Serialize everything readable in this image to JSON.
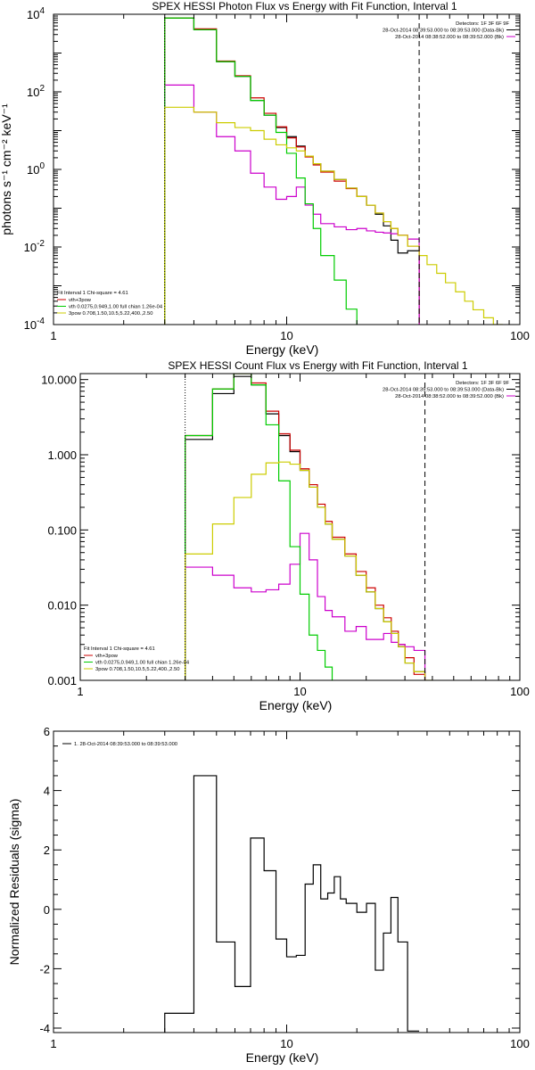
{
  "chart_data": [
    {
      "type": "line",
      "title": "SPEX HESSI Photon Flux vs Energy with Fit Function, Interval 1",
      "xlabel": "Energy (keV)",
      "ylabel": "photons s⁻¹ cm⁻² keV⁻¹",
      "xscale": "log",
      "yscale": "log",
      "xlim": [
        1,
        100
      ],
      "ylim": [
        0.0001,
        10000
      ],
      "xticks": [
        {
          "value": 1,
          "label": "1"
        },
        {
          "value": 10,
          "label": "10"
        },
        {
          "value": 100,
          "label": "100"
        }
      ],
      "yticks": [
        {
          "value": 0.0001,
          "label": "10",
          "sup": "-4"
        },
        {
          "value": 0.01,
          "label": "10",
          "sup": "-2"
        },
        {
          "value": 1,
          "label": "10",
          "sup": "0"
        },
        {
          "value": 100,
          "label": "10",
          "sup": "2"
        },
        {
          "value": 10000,
          "label": "10",
          "sup": "4"
        }
      ],
      "ytick_style": "power",
      "legend_top_right": [
        "Detectors: 1F 3F 6F 9F",
        "28-Oct-2014 08:39:53.000 to 08:39:53.000 (Data-Bk)",
        "28-Oct-2014 08:38:52.000 to 08:39:52.000 (Bk)"
      ],
      "legend_top_colors": [
        "#000000",
        "#cc00cc"
      ],
      "fit_text": "Fit Interval  1    Chi-square = 4.61",
      "legend_bottom_left": [
        "vth+3pow",
        "vth 0.0275,0.949,1.00  full chian 1.26e-04",
        "3pow 0.708,1.50,10.5,5.22,400.,2.50"
      ],
      "legend_bottom_colors": [
        "#cc0000",
        "#00cc00",
        "#cccc00"
      ],
      "markers": {
        "dotted_x": 3,
        "dashed_x": 37
      },
      "series": [
        {
          "name": "Data-Bk",
          "color": "#000000",
          "edges": [
            3,
            4,
            5,
            6,
            7,
            8,
            9,
            10,
            11,
            12,
            13,
            14,
            16,
            18,
            20,
            22,
            24,
            26,
            28,
            30,
            33,
            37
          ],
          "values": [
            8000,
            4000,
            600,
            250,
            60,
            25,
            12,
            7,
            4,
            2.2,
            1.4,
            0.9,
            0.55,
            0.33,
            0.2,
            0.12,
            0.07,
            0.035,
            0.015,
            0.007,
            0.008
          ]
        },
        {
          "name": "vth+3pow",
          "color": "#cc0000",
          "edges": [
            3,
            4,
            5,
            6,
            7,
            8,
            9,
            10,
            11,
            12,
            13,
            14,
            16,
            18,
            20,
            22,
            24,
            26,
            28,
            30,
            33,
            37
          ],
          "values": [
            8000,
            4200,
            620,
            260,
            70,
            28,
            12.5,
            6.5,
            3.8,
            2.1,
            1.3,
            0.85,
            0.5,
            0.32,
            0.2,
            0.12,
            0.075,
            0.045,
            0.03,
            0.02,
            0.0105
          ]
        },
        {
          "name": "Bk",
          "color": "#cc00cc",
          "edges": [
            3,
            4,
            5,
            6,
            7,
            8,
            9,
            10,
            11,
            12,
            13,
            14,
            16,
            18,
            20,
            22,
            24,
            26,
            28,
            30,
            33,
            37
          ],
          "values": [
            150,
            30,
            7,
            3,
            0.8,
            0.35,
            0.17,
            0.2,
            0.35,
            0.12,
            0.07,
            0.04,
            0.033,
            0.028,
            0.03,
            0.026,
            0.024,
            0.023,
            0.022,
            0.02,
            0.016
          ]
        },
        {
          "name": "vth",
          "color": "#00cc00",
          "edges": [
            3,
            4,
            5,
            6,
            7,
            8,
            9,
            10,
            11,
            12,
            13,
            14,
            16,
            18,
            20
          ],
          "values": [
            8000,
            4000,
            600,
            250,
            60,
            25,
            9,
            2.6,
            0.6,
            0.13,
            0.03,
            0.006,
            0.0014,
            0.00025
          ]
        },
        {
          "name": "3pow",
          "color": "#cccc00",
          "edges": [
            3,
            4,
            5,
            6,
            7,
            8,
            9,
            10,
            11,
            12,
            13,
            14,
            16,
            18,
            20,
            22,
            24,
            26,
            28,
            30,
            33,
            37,
            40,
            44,
            48,
            53,
            58,
            63,
            70,
            77,
            84,
            92
          ],
          "values": [
            40,
            30,
            16,
            12,
            10,
            6,
            4.3,
            3.6,
            3,
            2.2,
            1.4,
            0.9,
            0.55,
            0.33,
            0.2,
            0.12,
            0.075,
            0.045,
            0.03,
            0.02,
            0.0105,
            0.006,
            0.0035,
            0.0021,
            0.0012,
            0.0007,
            0.0004,
            0.00024,
            0.00015,
            0.0001,
            7e-05
          ]
        }
      ]
    },
    {
      "type": "line",
      "title": "SPEX HESSI Count Flux vs Energy with Fit Function, Interval 1",
      "xlabel": "Energy (keV)",
      "ylabel": "",
      "xscale": "log",
      "yscale": "log",
      "xlim": [
        1,
        100
      ],
      "ylim": [
        0.001,
        12
      ],
      "xticks": [
        {
          "value": 1,
          "label": "1"
        },
        {
          "value": 10,
          "label": "10"
        },
        {
          "value": 100,
          "label": "100"
        }
      ],
      "yticks": [
        {
          "value": 0.001,
          "label": "0.001"
        },
        {
          "value": 0.01,
          "label": "0.010"
        },
        {
          "value": 0.1,
          "label": "0.100"
        },
        {
          "value": 1,
          "label": "1.000"
        },
        {
          "value": 10,
          "label": "10.000"
        }
      ],
      "ytick_style": "plain",
      "legend_top_right": [
        "Detectors: 1F 3F 6F 9F",
        "28-Oct-2014 08:39:53.000 to 08:39:53.000 (Data-Bk)",
        "28-Oct-2014 08:38:52.000 to 08:39:52.000 (Bk)"
      ],
      "legend_top_colors": [
        "#000000",
        "#cc00cc"
      ],
      "fit_text": "Fit Interval  1    Chi-square = 4.61",
      "legend_bottom_left": [
        "vth+3pow",
        "vth 0.0275,0.949,1.00  full chian 1.26e-04",
        "3pow 0.708,1.50,10.5,5.22,400.,2.50"
      ],
      "legend_bottom_colors": [
        "#cc0000",
        "#00cc00",
        "#cccc00"
      ],
      "markers": {
        "dotted_x": 3,
        "dashed_x": 37
      },
      "series": [
        {
          "name": "Data-Bk",
          "color": "#000000",
          "edges": [
            3,
            4,
            5,
            6,
            7,
            8,
            9,
            10,
            11,
            12,
            13,
            14,
            16,
            18,
            20,
            22,
            24,
            26,
            28,
            30,
            33,
            37,
            40
          ],
          "values": [
            1.6,
            6.5,
            11,
            8.5,
            3.5,
            1.8,
            1.1,
            0.62,
            0.37,
            0.2,
            0.12,
            0.075,
            0.045,
            0.025,
            0.015,
            0.009,
            0.006,
            0.0042,
            0.0028,
            0.0017,
            0.0013,
            0.0008
          ]
        },
        {
          "name": "vth+3pow",
          "color": "#cc0000",
          "edges": [
            3,
            4,
            5,
            6,
            7,
            8,
            9,
            10,
            11,
            12,
            13,
            14,
            16,
            18,
            20,
            22,
            24,
            26,
            28,
            30,
            33,
            37,
            40
          ],
          "values": [
            1.8,
            7.5,
            12,
            9,
            3.8,
            1.9,
            1.15,
            0.65,
            0.4,
            0.22,
            0.13,
            0.08,
            0.048,
            0.028,
            0.017,
            0.01,
            0.0068,
            0.0045,
            0.003,
            0.002,
            0.0012,
            0.0007
          ]
        },
        {
          "name": "Bk",
          "color": "#cc00cc",
          "edges": [
            3,
            4,
            5,
            6,
            7,
            8,
            9,
            10,
            11,
            12,
            13,
            14,
            16,
            18,
            20,
            22,
            24,
            26,
            28,
            30,
            33,
            37
          ],
          "values": [
            0.032,
            0.025,
            0.017,
            0.015,
            0.016,
            0.019,
            0.035,
            0.09,
            0.04,
            0.013,
            0.0085,
            0.007,
            0.0045,
            0.0052,
            0.0035,
            0.0035,
            0.0042,
            0.0032,
            0.003,
            0.0028,
            0.0025
          ]
        },
        {
          "name": "vth",
          "color": "#00cc00",
          "edges": [
            3,
            4,
            5,
            6,
            7,
            8,
            9,
            10,
            11,
            12,
            13,
            14,
            15
          ],
          "values": [
            1.8,
            7.5,
            12,
            8.5,
            2.5,
            0.45,
            0.06,
            0.014,
            0.004,
            0.0025,
            0.0015,
            0.0008
          ]
        },
        {
          "name": "3pow",
          "color": "#cccc00",
          "edges": [
            3,
            4,
            5,
            6,
            7,
            8,
            9,
            10,
            11,
            12,
            13,
            14,
            16,
            18,
            20,
            22,
            24,
            26,
            28,
            30,
            33,
            37,
            40,
            44
          ],
          "values": [
            0.048,
            0.12,
            0.27,
            0.55,
            0.78,
            0.8,
            0.75,
            0.62,
            0.37,
            0.2,
            0.12,
            0.075,
            0.045,
            0.025,
            0.015,
            0.009,
            0.006,
            0.0042,
            0.0028,
            0.0017,
            0.0013,
            0.001,
            0.0006
          ]
        }
      ]
    },
    {
      "type": "line",
      "title": "",
      "xlabel": "Energy (keV)",
      "ylabel": "Normalized Residuals (sigma)",
      "xscale": "log",
      "yscale": "linear",
      "xlim": [
        1,
        100
      ],
      "ylim": [
        -4.15,
        6
      ],
      "xticks": [
        {
          "value": 1,
          "label": "1"
        },
        {
          "value": 10,
          "label": "10"
        },
        {
          "value": 100,
          "label": "100"
        }
      ],
      "yticks": [
        {
          "value": -4,
          "label": "-4"
        },
        {
          "value": -2,
          "label": "-2"
        },
        {
          "value": 0,
          "label": "0"
        },
        {
          "value": 2,
          "label": "2"
        },
        {
          "value": 4,
          "label": "4"
        },
        {
          "value": 6,
          "label": "6"
        }
      ],
      "ytick_style": "plain",
      "legend_top_left": "1. 28-Oct-2014 08:39:53.000 to 08:39:53.000",
      "series": [
        {
          "name": "",
          "color": "#000000",
          "edges": [
            3,
            4,
            5,
            6,
            7,
            8,
            9,
            10,
            11,
            12,
            13,
            14,
            15,
            16,
            17,
            18,
            20,
            22,
            24,
            26,
            28,
            30,
            33,
            37
          ],
          "values": [
            -3.5,
            4.5,
            -1.1,
            -2.6,
            2.4,
            1.3,
            -1.0,
            -1.6,
            -1.55,
            0.85,
            1.5,
            0.35,
            0.55,
            1.1,
            0.35,
            0.2,
            -0.1,
            0.2,
            -2.05,
            -0.8,
            0.4,
            -1.1,
            -4.1
          ]
        }
      ]
    }
  ]
}
